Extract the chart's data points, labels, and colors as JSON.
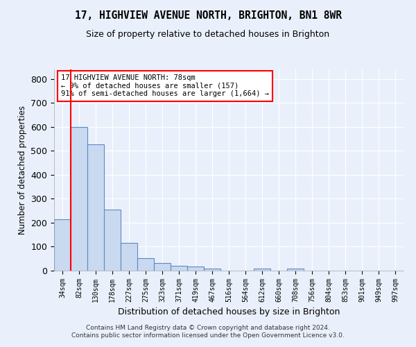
{
  "title_line1": "17, HIGHVIEW AVENUE NORTH, BRIGHTON, BN1 8WR",
  "title_line2": "Size of property relative to detached houses in Brighton",
  "xlabel": "Distribution of detached houses by size in Brighton",
  "ylabel": "Number of detached properties",
  "footer_line1": "Contains HM Land Registry data © Crown copyright and database right 2024.",
  "footer_line2": "Contains public sector information licensed under the Open Government Licence v3.0.",
  "annotation_line1": "17 HIGHVIEW AVENUE NORTH: 78sqm",
  "annotation_line2": "← 9% of detached houses are smaller (157)",
  "annotation_line3": "91% of semi-detached houses are larger (1,664) →",
  "bar_labels": [
    "34sqm",
    "82sqm",
    "130sqm",
    "178sqm",
    "227sqm",
    "275sqm",
    "323sqm",
    "371sqm",
    "419sqm",
    "467sqm",
    "516sqm",
    "564sqm",
    "612sqm",
    "660sqm",
    "708sqm",
    "756sqm",
    "804sqm",
    "853sqm",
    "901sqm",
    "949sqm",
    "997sqm"
  ],
  "bar_values": [
    215,
    600,
    527,
    255,
    116,
    52,
    31,
    20,
    16,
    10,
    0,
    0,
    10,
    0,
    8,
    0,
    0,
    0,
    0,
    0,
    0
  ],
  "bar_color": "#c9d9f0",
  "bar_edge_color": "#5a8ac6",
  "bg_color": "#eaf0fb",
  "plot_bg_color": "#eaf0fb",
  "grid_color": "white",
  "ylim": [
    0,
    840
  ],
  "yticks": [
    0,
    100,
    200,
    300,
    400,
    500,
    600,
    700,
    800
  ]
}
